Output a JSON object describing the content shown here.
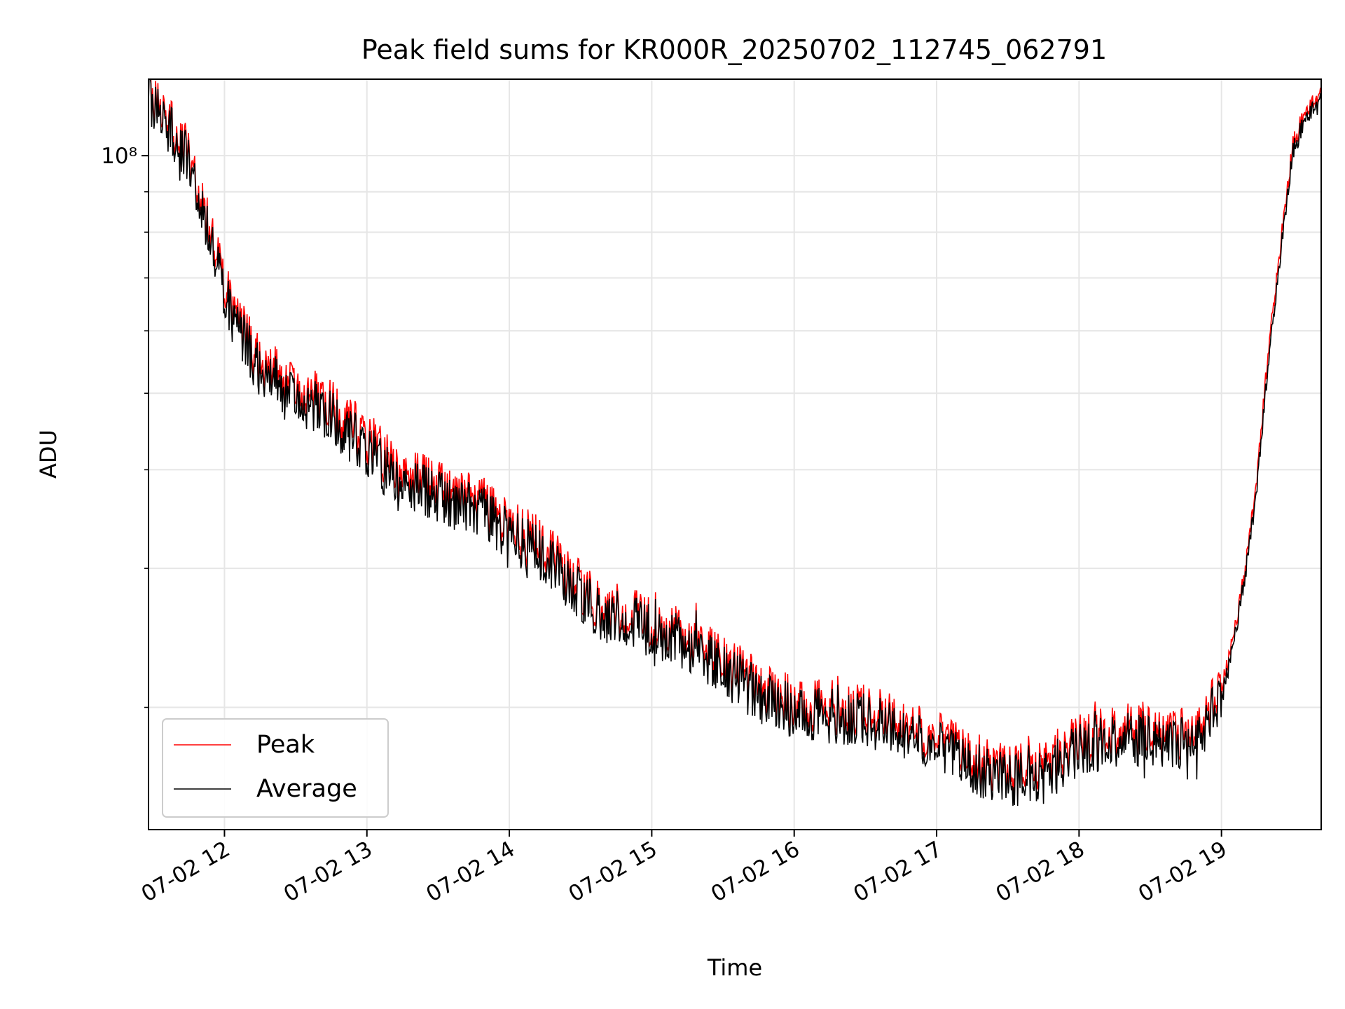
{
  "chart_data": {
    "type": "line",
    "title": "Peak field sums for KR000R_20250702_112745_062791",
    "xlabel": "Time",
    "ylabel": "ADU",
    "y_scale": "log",
    "y_tick_labels": [
      {
        "value": 100000000,
        "label": "10⁸"
      }
    ],
    "ylim": [
      14000000,
      125000000
    ],
    "xlim": [
      "2025-07-02T11:28",
      "2025-07-02T19:42"
    ],
    "x_ticks": [
      {
        "value": "2025-07-02T12:00",
        "label": "07-02 12"
      },
      {
        "value": "2025-07-02T13:00",
        "label": "07-02 13"
      },
      {
        "value": "2025-07-02T14:00",
        "label": "07-02 14"
      },
      {
        "value": "2025-07-02T15:00",
        "label": "07-02 15"
      },
      {
        "value": "2025-07-02T16:00",
        "label": "07-02 16"
      },
      {
        "value": "2025-07-02T17:00",
        "label": "07-02 17"
      },
      {
        "value": "2025-07-02T18:00",
        "label": "07-02 18"
      },
      {
        "value": "2025-07-02T19:00",
        "label": "07-02 19"
      }
    ],
    "grid": true,
    "legend_position": "lower-left",
    "series": [
      {
        "name": "Peak",
        "color": "#ff0000",
        "x": [
          "2025-07-02T11:28",
          "2025-07-02T11:35",
          "2025-07-02T11:45",
          "2025-07-02T11:50",
          "2025-07-02T11:55",
          "2025-07-02T12:00",
          "2025-07-02T12:05",
          "2025-07-02T12:15",
          "2025-07-02T12:30",
          "2025-07-02T12:45",
          "2025-07-02T13:00",
          "2025-07-02T13:10",
          "2025-07-02T13:20",
          "2025-07-02T13:35",
          "2025-07-02T13:50",
          "2025-07-02T14:00",
          "2025-07-02T14:15",
          "2025-07-02T14:25",
          "2025-07-02T14:40",
          "2025-07-02T14:50",
          "2025-07-02T15:00",
          "2025-07-02T15:15",
          "2025-07-02T15:30",
          "2025-07-02T15:45",
          "2025-07-02T16:00",
          "2025-07-02T16:15",
          "2025-07-02T16:30",
          "2025-07-02T16:45",
          "2025-07-02T17:00",
          "2025-07-02T17:15",
          "2025-07-02T17:30",
          "2025-07-02T17:45",
          "2025-07-02T18:00",
          "2025-07-02T18:15",
          "2025-07-02T18:30",
          "2025-07-02T18:40",
          "2025-07-02T18:50",
          "2025-07-02T19:00",
          "2025-07-02T19:05",
          "2025-07-02T19:10",
          "2025-07-02T19:15",
          "2025-07-02T19:20",
          "2025-07-02T19:25",
          "2025-07-02T19:30",
          "2025-07-02T19:35",
          "2025-07-02T19:42"
        ],
        "y": [
          120000000,
          112000000,
          100000000,
          88000000,
          78000000,
          68000000,
          62000000,
          55000000,
          51000000,
          48000000,
          44000000,
          41000000,
          39000000,
          37500000,
          36000000,
          34000000,
          32000000,
          29500000,
          26500000,
          26500000,
          25500000,
          24500000,
          23000000,
          21200000,
          20300000,
          20000000,
          19800000,
          19000000,
          18300000,
          17200000,
          16500000,
          16800000,
          18200000,
          18600000,
          18800000,
          18500000,
          18700000,
          21000000,
          24500000,
          30000000,
          39000000,
          58000000,
          78000000,
          103000000,
          113000000,
          121000000
        ]
      },
      {
        "name": "Average",
        "color": "#000000",
        "x": [
          "2025-07-02T11:28",
          "2025-07-02T11:35",
          "2025-07-02T11:45",
          "2025-07-02T11:50",
          "2025-07-02T11:55",
          "2025-07-02T12:00",
          "2025-07-02T12:05",
          "2025-07-02T12:15",
          "2025-07-02T12:30",
          "2025-07-02T12:45",
          "2025-07-02T13:00",
          "2025-07-02T13:10",
          "2025-07-02T13:20",
          "2025-07-02T13:35",
          "2025-07-02T13:50",
          "2025-07-02T14:00",
          "2025-07-02T14:15",
          "2025-07-02T14:25",
          "2025-07-02T14:40",
          "2025-07-02T14:50",
          "2025-07-02T15:00",
          "2025-07-02T15:15",
          "2025-07-02T15:30",
          "2025-07-02T15:45",
          "2025-07-02T16:00",
          "2025-07-02T16:15",
          "2025-07-02T16:30",
          "2025-07-02T16:45",
          "2025-07-02T17:00",
          "2025-07-02T17:15",
          "2025-07-02T17:30",
          "2025-07-02T17:45",
          "2025-07-02T18:00",
          "2025-07-02T18:15",
          "2025-07-02T18:30",
          "2025-07-02T18:40",
          "2025-07-02T18:50",
          "2025-07-02T19:00",
          "2025-07-02T19:05",
          "2025-07-02T19:10",
          "2025-07-02T19:15",
          "2025-07-02T19:20",
          "2025-07-02T19:25",
          "2025-07-02T19:30",
          "2025-07-02T19:35",
          "2025-07-02T19:42"
        ],
        "y": [
          118000000,
          110000000,
          98000000,
          86000000,
          76000000,
          66000000,
          60500000,
          53500000,
          49500000,
          46500000,
          42500000,
          39500000,
          37800000,
          36500000,
          35000000,
          33200000,
          31000000,
          28700000,
          26000000,
          25900000,
          25000000,
          24000000,
          22400000,
          20700000,
          19800000,
          19500000,
          19300000,
          18500000,
          17800000,
          16700000,
          16100000,
          16300000,
          17700000,
          18100000,
          18300000,
          18000000,
          18200000,
          20500000,
          24000000,
          29500000,
          38000000,
          56000000,
          76000000,
          101000000,
          111000000,
          119000000
        ]
      }
    ]
  }
}
